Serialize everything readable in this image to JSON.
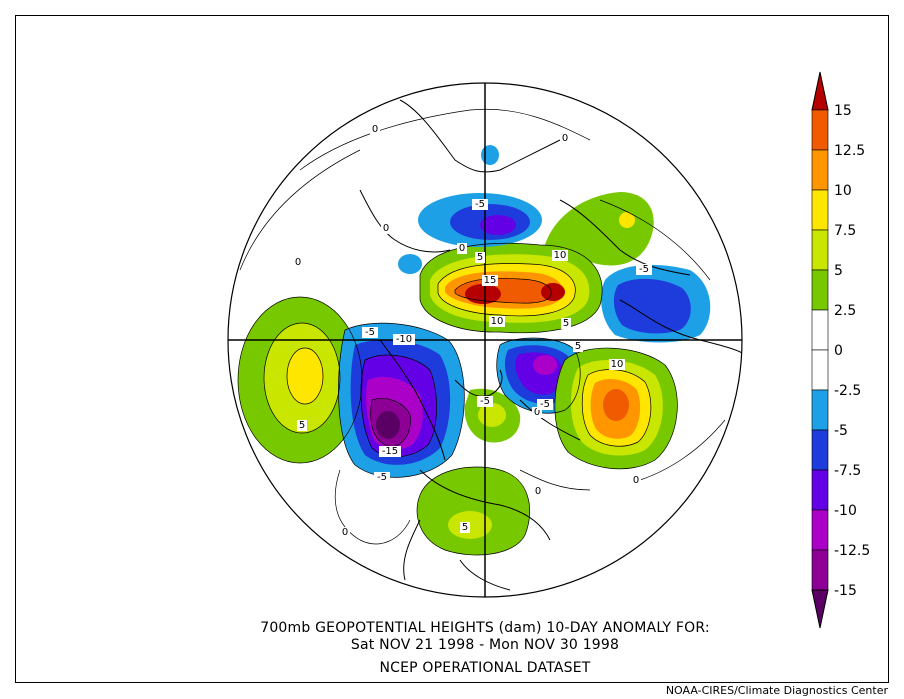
{
  "title": {
    "line1": "700mb GEOPOTENTIAL HEIGHTS (dam)   10-DAY ANOMALY FOR:",
    "line2": "Sat NOV 21 1998 - Mon NOV 30 1998",
    "line3": "NCEP OPERATIONAL DATASET"
  },
  "credit": "NOAA-CIRES/Climate Diagnostics Center",
  "colorbar": {
    "labels": [
      "15",
      "12.5",
      "10",
      "7.5",
      "5",
      "2.5",
      "0",
      "-2.5",
      "-5",
      "-7.5",
      "-10",
      "-12.5",
      "-15"
    ],
    "colors": [
      "#b40000",
      "#f05a00",
      "#ff9600",
      "#ffe600",
      "#c8e600",
      "#78c800",
      "#ffffff",
      "#ffffff",
      "#1ea0e6",
      "#1e3cdc",
      "#6400e6",
      "#aa00c8",
      "#8c0096",
      "#5a0064"
    ]
  },
  "contour_labels": [
    {
      "text": "15"
    },
    {
      "text": "10"
    },
    {
      "text": "10"
    },
    {
      "text": "5"
    },
    {
      "text": "5"
    },
    {
      "text": "10"
    },
    {
      "text": "5"
    },
    {
      "text": "5"
    },
    {
      "text": "5"
    },
    {
      "text": "0"
    },
    {
      "text": "0"
    },
    {
      "text": "0"
    },
    {
      "text": "0"
    },
    {
      "text": "0"
    },
    {
      "text": "0"
    },
    {
      "text": "0"
    },
    {
      "text": "0"
    },
    {
      "text": "-5"
    },
    {
      "text": "-5"
    },
    {
      "text": "-5"
    },
    {
      "text": "-5"
    },
    {
      "text": "-5"
    },
    {
      "text": "-10"
    },
    {
      "text": "-15"
    },
    {
      "text": "-5"
    },
    {
      "text": "0"
    }
  ]
}
